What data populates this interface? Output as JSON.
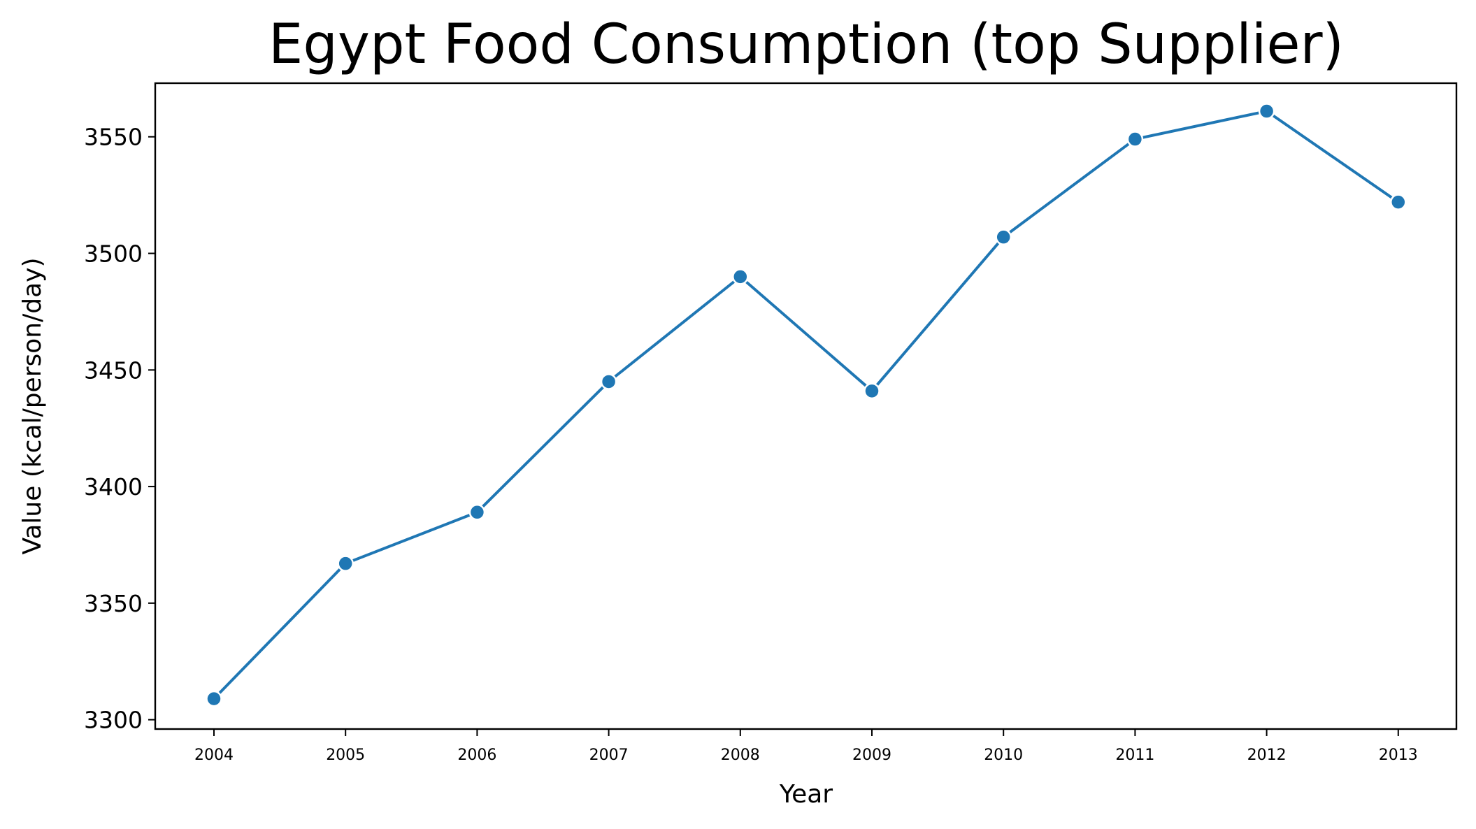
{
  "chart_data": {
    "type": "line",
    "title": "Egypt Food Consumption (top Supplier)",
    "xlabel": "Year",
    "ylabel": "Value (kcal/person/day)",
    "x": [
      "2004",
      "2005",
      "2006",
      "2007",
      "2008",
      "2009",
      "2010",
      "2011",
      "2012",
      "2013"
    ],
    "series": [
      {
        "values": [
          3309,
          3367,
          3389,
          3445,
          3490,
          3441,
          3507,
          3549,
          3561,
          3522
        ]
      }
    ],
    "yticks": [
      3300,
      3350,
      3400,
      3450,
      3500,
      3550
    ],
    "ylim": [
      3296,
      3573
    ],
    "grid": false,
    "line_color": "#1f77b4",
    "marker": "circle"
  }
}
